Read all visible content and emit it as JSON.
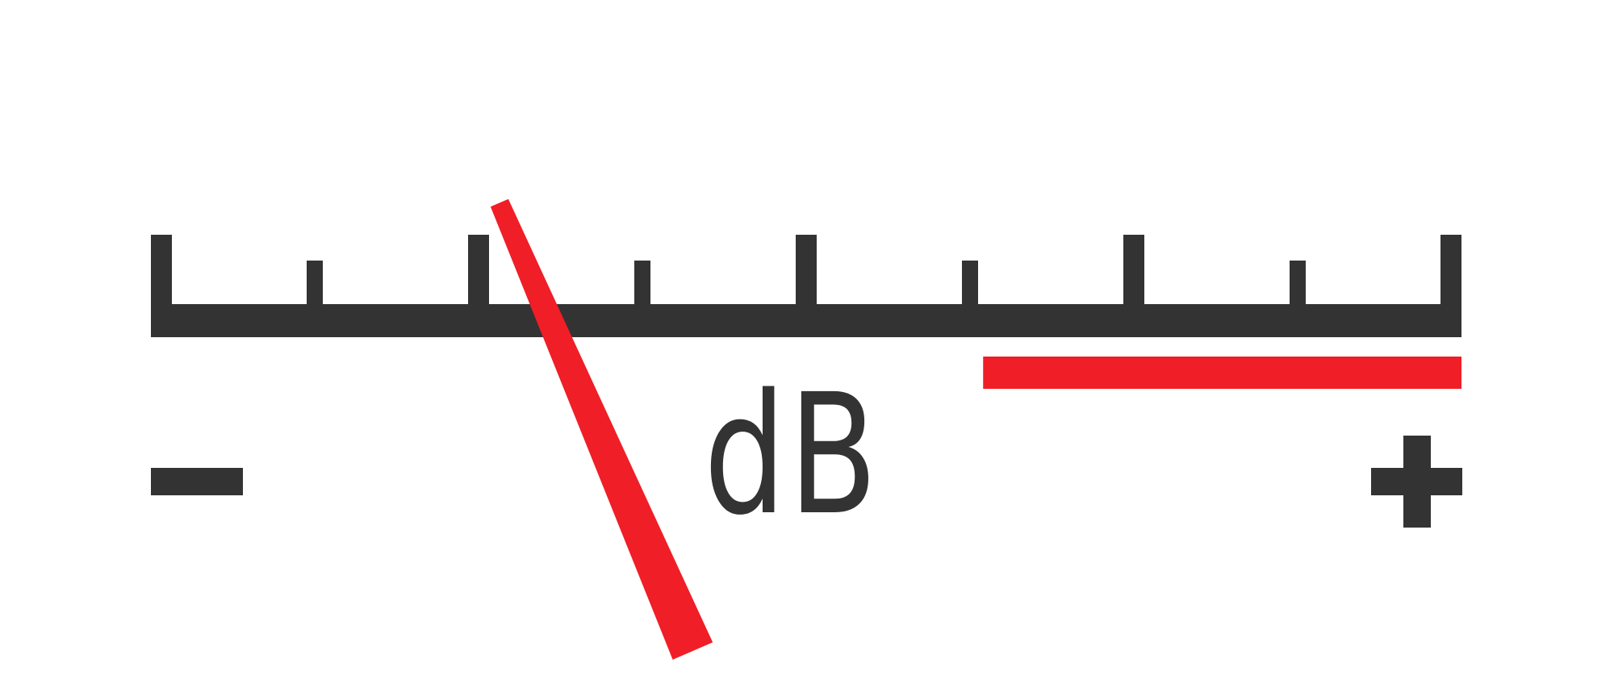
{
  "meter": {
    "unit_label": "dB",
    "minus_symbol": "-",
    "plus_symbol": "+",
    "level_fraction": 0.28,
    "red_zone_start_fraction": 0.635,
    "major_tick_count": 5,
    "minor_tick_count": 4
  },
  "colors": {
    "scale": "#333333",
    "needle": "#f01e26",
    "red_zone": "#f01e26",
    "background": "#ffffff"
  }
}
